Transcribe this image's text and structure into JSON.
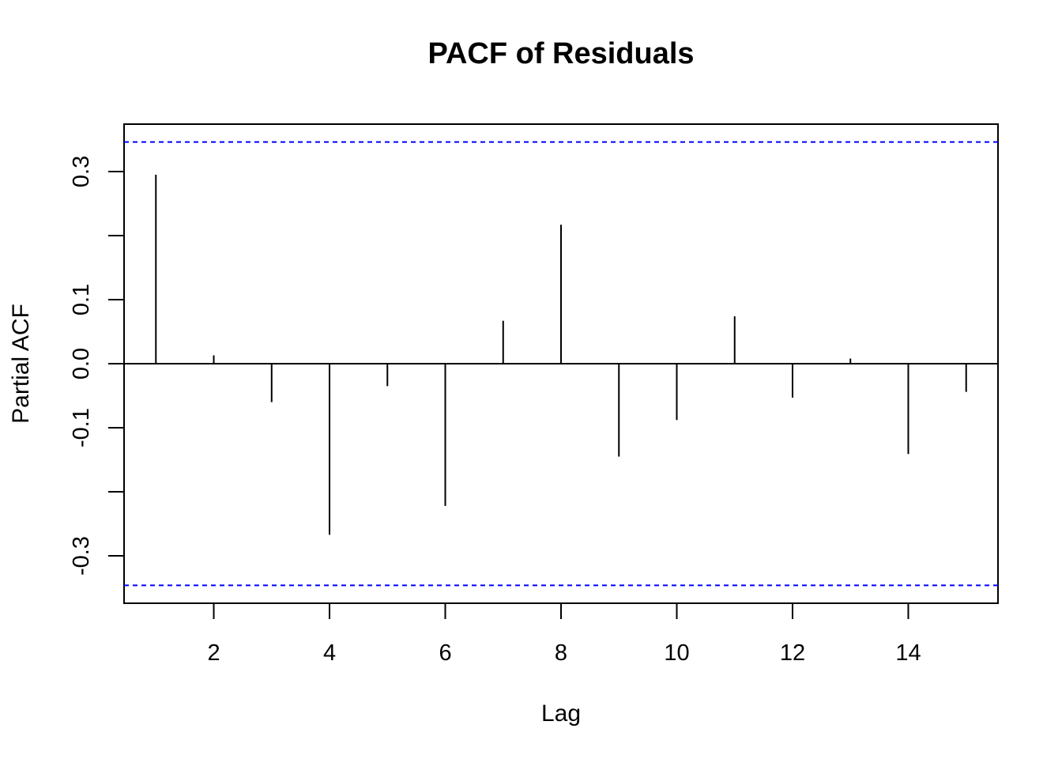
{
  "chart_data": {
    "type": "bar",
    "title": "PACF of Residuals",
    "xlabel": "Lag",
    "ylabel": "Partial ACF",
    "x": [
      1,
      2,
      3,
      4,
      5,
      6,
      7,
      8,
      9,
      10,
      11,
      12,
      13,
      14,
      15
    ],
    "values": [
      0.295,
      0.013,
      -0.06,
      -0.267,
      -0.035,
      -0.222,
      0.067,
      0.217,
      -0.145,
      -0.088,
      0.074,
      -0.053,
      0.008,
      -0.141,
      -0.044
    ],
    "xlim": [
      0.45,
      15.55
    ],
    "ylim": [
      -0.374,
      0.374
    ],
    "xticks": [
      2,
      4,
      6,
      8,
      10,
      12,
      14
    ],
    "xtick_labels": [
      "2",
      "4",
      "6",
      "8",
      "10",
      "12",
      "14"
    ],
    "yticks": [
      -0.3,
      -0.2,
      -0.1,
      0.0,
      0.1,
      0.2,
      0.3
    ],
    "ytick_labels": [
      "-0.3",
      "",
      "-0.1",
      "0.0",
      "0.1",
      "",
      "0.3"
    ],
    "ci_bounds": [
      -0.346,
      0.346
    ],
    "ci_color": "#0000ff",
    "bar_color": "#000000",
    "grid": false,
    "legend": "none"
  }
}
